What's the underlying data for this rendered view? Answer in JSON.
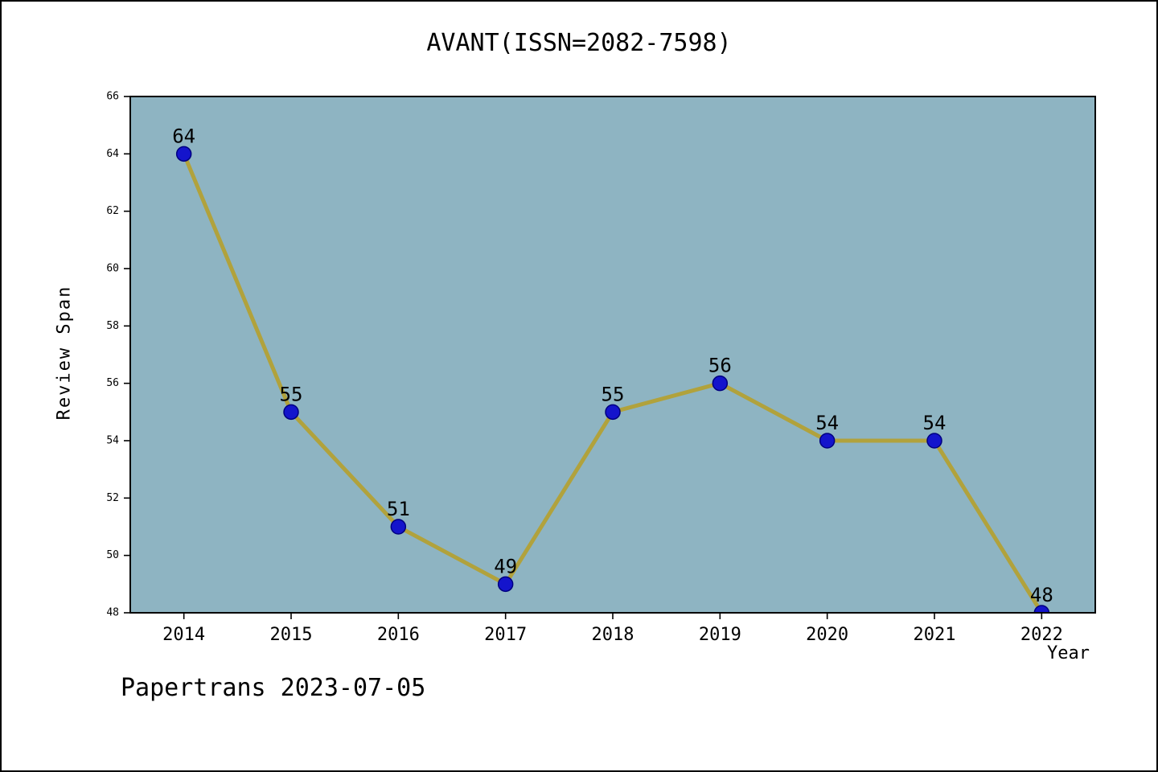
{
  "title": "AVANT(ISSN=2082-7598)",
  "footer": "Papertrans 2023-07-05",
  "chart_data": {
    "type": "line",
    "title": "AVANT(ISSN=2082-7598)",
    "xlabel": "Year",
    "ylabel": "Review Span",
    "x": [
      2014,
      2015,
      2016,
      2017,
      2018,
      2019,
      2020,
      2021,
      2022
    ],
    "values": [
      64,
      55,
      51,
      49,
      55,
      56,
      54,
      54,
      48
    ],
    "point_labels": [
      "64",
      "55",
      "51",
      "49",
      "55",
      "56",
      "54",
      "54",
      "48"
    ],
    "xlim": [
      2013.5,
      2022.5
    ],
    "ylim": [
      48,
      66
    ],
    "yticks": [
      48,
      50,
      52,
      54,
      56,
      58,
      60,
      62,
      64,
      66
    ],
    "xticks": [
      2014,
      2015,
      2016,
      2017,
      2018,
      2019,
      2020,
      2021,
      2022
    ],
    "grid": false,
    "legend": null,
    "colors": {
      "plot_bg": "#8EB4C2",
      "line": "#B1A23C",
      "marker_fill": "#1414CC",
      "marker_edge": "#000080",
      "axis": "#000000",
      "text": "#000000"
    }
  }
}
